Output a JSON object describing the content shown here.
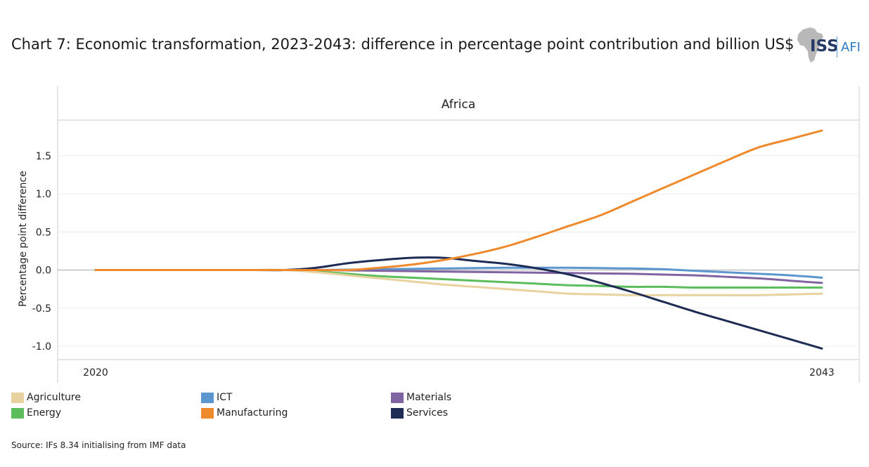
{
  "title": "Chart 7: Economic transformation, 2023-2043: difference in percentage point contribution and billion US$",
  "logo": {
    "primary": "ISS",
    "secondary": "AFI"
  },
  "source": "Source: IFs 8.34 initialising from IMF data",
  "chart_data": {
    "type": "line",
    "panel_title": "Africa",
    "ylabel": "Percentage point difference",
    "xlabel": "",
    "x": [
      2020,
      2021,
      2022,
      2023,
      2024,
      2025,
      2026,
      2027,
      2028,
      2029,
      2030,
      2031,
      2032,
      2033,
      2034,
      2035,
      2036,
      2037,
      2038,
      2039,
      2040,
      2041,
      2042,
      2043
    ],
    "x_ticks": [
      "2020",
      "2043"
    ],
    "y_ticks": [
      1.5,
      1.0,
      0.5,
      0.0,
      -0.5,
      -1.0
    ],
    "y_tick_labels": [
      "1.5",
      "1.0",
      "0.5",
      "0.0",
      "-0.5",
      "-1.0"
    ],
    "ylim": [
      -1.2,
      2.0
    ],
    "grid": true,
    "legend_position": "bottom",
    "series": [
      {
        "name": "Agriculture",
        "color": "#e8d29f",
        "values": [
          0,
          0,
          0,
          0,
          0,
          0,
          0,
          -0.03,
          -0.07,
          -0.11,
          -0.15,
          -0.19,
          -0.22,
          -0.25,
          -0.28,
          -0.31,
          -0.32,
          -0.33,
          -0.33,
          -0.33,
          -0.33,
          -0.33,
          -0.32,
          -0.31
        ]
      },
      {
        "name": "Energy",
        "color": "#5cbd5c",
        "values": [
          0,
          0,
          0,
          0,
          0,
          0,
          0,
          -0.02,
          -0.05,
          -0.08,
          -0.1,
          -0.12,
          -0.14,
          -0.16,
          -0.18,
          -0.2,
          -0.21,
          -0.22,
          -0.22,
          -0.23,
          -0.23,
          -0.23,
          -0.23,
          -0.23
        ]
      },
      {
        "name": "ICT",
        "color": "#5b96cf",
        "values": [
          0,
          0,
          0,
          0,
          0,
          0,
          0,
          0,
          0.005,
          0.01,
          0.015,
          0.02,
          0.025,
          0.03,
          0.03,
          0.03,
          0.025,
          0.02,
          0.01,
          -0.01,
          -0.03,
          -0.05,
          -0.07,
          -0.1
        ]
      },
      {
        "name": "Manufacturing",
        "color": "#ef8a2c",
        "values": [
          0,
          0,
          0,
          0,
          0,
          0,
          0,
          0,
          0,
          0.03,
          0.07,
          0.13,
          0.21,
          0.31,
          0.44,
          0.58,
          0.72,
          0.9,
          1.08,
          1.26,
          1.44,
          1.61,
          1.72,
          1.83
        ]
      },
      {
        "name": "Materials",
        "color": "#8064a2",
        "values": [
          0,
          0,
          0,
          0,
          0,
          0,
          0,
          0,
          -0.005,
          -0.01,
          -0.015,
          -0.02,
          -0.025,
          -0.03,
          -0.035,
          -0.04,
          -0.045,
          -0.05,
          -0.06,
          -0.07,
          -0.09,
          -0.11,
          -0.14,
          -0.17
        ]
      },
      {
        "name": "Services",
        "color": "#1d2b55",
        "values": [
          0,
          0,
          0,
          0,
          0,
          0,
          0,
          0.03,
          0.09,
          0.13,
          0.16,
          0.16,
          0.12,
          0.08,
          0.02,
          -0.06,
          -0.17,
          -0.29,
          -0.42,
          -0.55,
          -0.67,
          -0.79,
          -0.91,
          -1.03
        ]
      }
    ]
  }
}
